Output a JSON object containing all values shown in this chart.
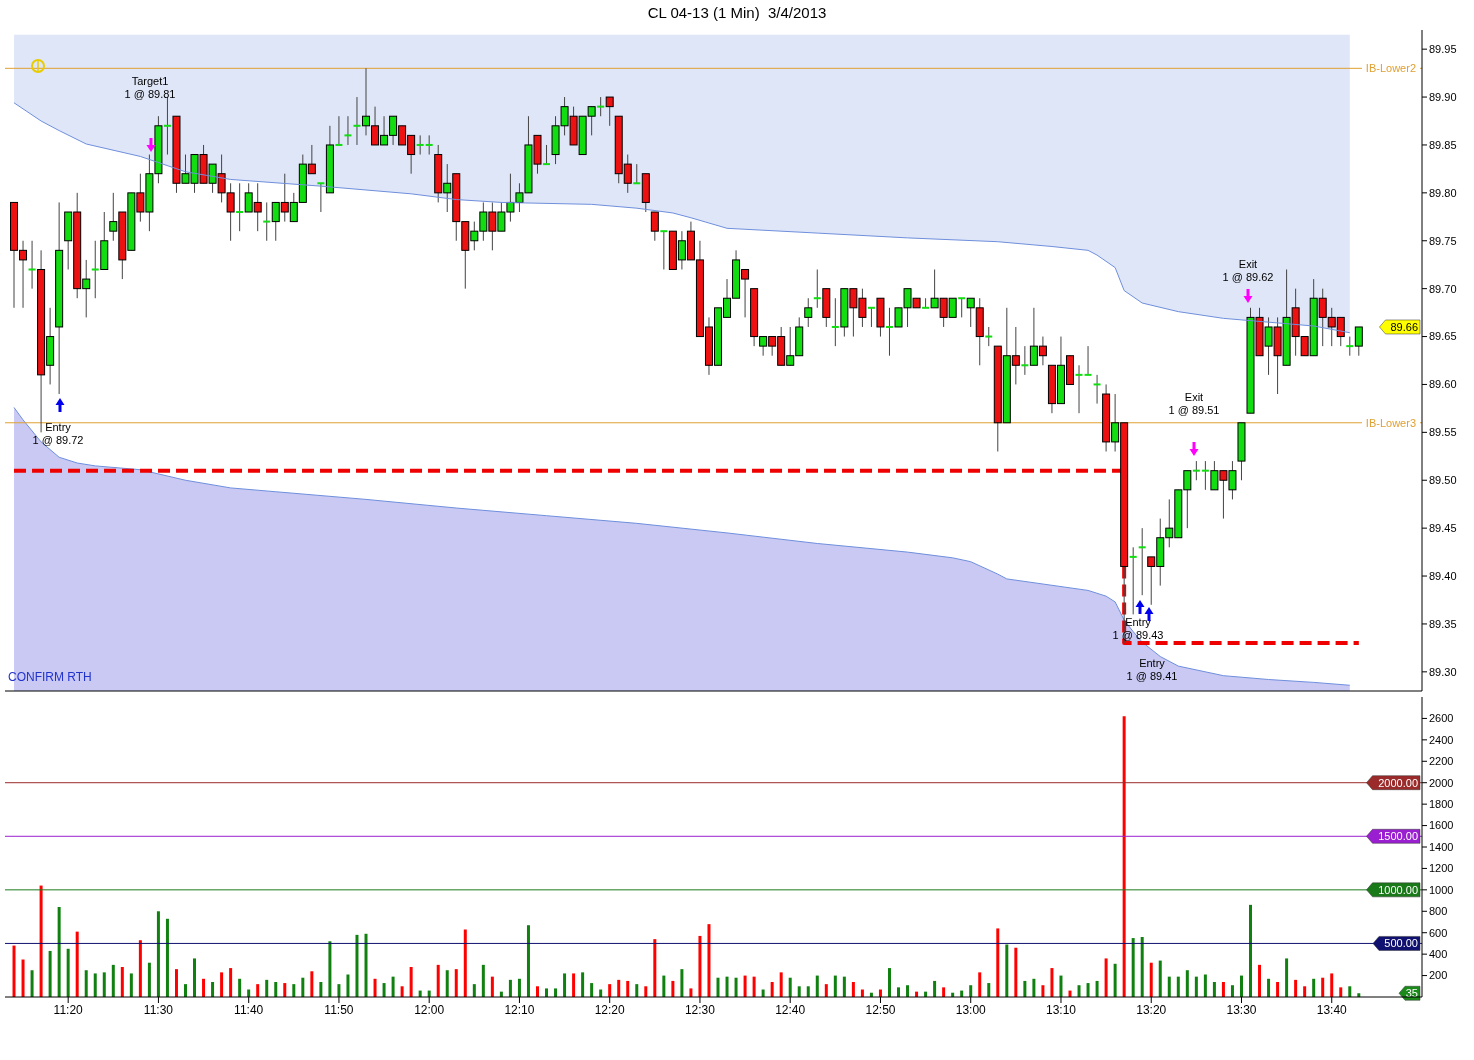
{
  "chart_data": [
    {
      "type": "candlestick",
      "title": "CL 04-13 (1 Min)  3/4/2013",
      "x": [
        "2013-03-04T11:14",
        "2013-03-04T11:15",
        "2013-03-04T11:16",
        "2013-03-04T11:17",
        "2013-03-04T11:18",
        "2013-03-04T11:19",
        "2013-03-04T11:20",
        "2013-03-04T11:21",
        "2013-03-04T11:22",
        "2013-03-04T11:23",
        "2013-03-04T11:24",
        "2013-03-04T11:25",
        "2013-03-04T11:26",
        "2013-03-04T11:27",
        "2013-03-04T11:28",
        "2013-03-04T11:29",
        "2013-03-04T11:30",
        "2013-03-04T11:31",
        "2013-03-04T11:32",
        "2013-03-04T11:33",
        "2013-03-04T11:34",
        "2013-03-04T11:35",
        "2013-03-04T11:36",
        "2013-03-04T11:37",
        "2013-03-04T11:38",
        "2013-03-04T11:39",
        "2013-03-04T11:40",
        "2013-03-04T11:41",
        "2013-03-04T11:42",
        "2013-03-04T11:43",
        "2013-03-04T11:44",
        "2013-03-04T11:45",
        "2013-03-04T11:46",
        "2013-03-04T11:47",
        "2013-03-04T11:48",
        "2013-03-04T11:49",
        "2013-03-04T11:50",
        "2013-03-04T11:51",
        "2013-03-04T11:52",
        "2013-03-04T11:53",
        "2013-03-04T11:54",
        "2013-03-04T11:55",
        "2013-03-04T11:56",
        "2013-03-04T11:57",
        "2013-03-04T11:58",
        "2013-03-04T11:59",
        "2013-03-04T12:00",
        "2013-03-04T12:01",
        "2013-03-04T12:02",
        "2013-03-04T12:03",
        "2013-03-04T12:04",
        "2013-03-04T12:05",
        "2013-03-04T12:06",
        "2013-03-04T12:07",
        "2013-03-04T12:08",
        "2013-03-04T12:09",
        "2013-03-04T12:10",
        "2013-03-04T12:11",
        "2013-03-04T12:12",
        "2013-03-04T12:13",
        "2013-03-04T12:14",
        "2013-03-04T12:15",
        "2013-03-04T12:16",
        "2013-03-04T12:17",
        "2013-03-04T12:18",
        "2013-03-04T12:19",
        "2013-03-04T12:20",
        "2013-03-04T12:21",
        "2013-03-04T12:22",
        "2013-03-04T12:23",
        "2013-03-04T12:24",
        "2013-03-04T12:25",
        "2013-03-04T12:26",
        "2013-03-04T12:27",
        "2013-03-04T12:28",
        "2013-03-04T12:29",
        "2013-03-04T12:30",
        "2013-03-04T12:31",
        "2013-03-04T12:32",
        "2013-03-04T12:33",
        "2013-03-04T12:34",
        "2013-03-04T12:35",
        "2013-03-04T12:36",
        "2013-03-04T12:37",
        "2013-03-04T12:38",
        "2013-03-04T12:39",
        "2013-03-04T12:40",
        "2013-03-04T12:41",
        "2013-03-04T12:42",
        "2013-03-04T12:43",
        "2013-03-04T12:44",
        "2013-03-04T12:45",
        "2013-03-04T12:46",
        "2013-03-04T12:47",
        "2013-03-04T12:48",
        "2013-03-04T12:49",
        "2013-03-04T12:50",
        "2013-03-04T12:51",
        "2013-03-04T12:52",
        "2013-03-04T12:53",
        "2013-03-04T12:54",
        "2013-03-04T12:55",
        "2013-03-04T12:56",
        "2013-03-04T12:57",
        "2013-03-04T12:58",
        "2013-03-04T12:59",
        "2013-03-04T13:00",
        "2013-03-04T13:01",
        "2013-03-04T13:02",
        "2013-03-04T13:03",
        "2013-03-04T13:04",
        "2013-03-04T13:05",
        "2013-03-04T13:06",
        "2013-03-04T13:07",
        "2013-03-04T13:08",
        "2013-03-04T13:09",
        "2013-03-04T13:10",
        "2013-03-04T13:11",
        "2013-03-04T13:12",
        "2013-03-04T13:13",
        "2013-03-04T13:14",
        "2013-03-04T13:15",
        "2013-03-04T13:16",
        "2013-03-04T13:17",
        "2013-03-04T13:18",
        "2013-03-04T13:19",
        "2013-03-04T13:20",
        "2013-03-04T13:21",
        "2013-03-04T13:22",
        "2013-03-04T13:23",
        "2013-03-04T13:24",
        "2013-03-04T13:25",
        "2013-03-04T13:26",
        "2013-03-04T13:27",
        "2013-03-04T13:28",
        "2013-03-04T13:29",
        "2013-03-04T13:30",
        "2013-03-04T13:31",
        "2013-03-04T13:32",
        "2013-03-04T13:33",
        "2013-03-04T13:34",
        "2013-03-04T13:35",
        "2013-03-04T13:36",
        "2013-03-04T13:37",
        "2013-03-04T13:38",
        "2013-03-04T13:39",
        "2013-03-04T13:40",
        "2013-03-04T13:41",
        "2013-03-04T13:42",
        "2013-03-04T13:43"
      ],
      "ohlc": [
        [
          89.79,
          89.79,
          89.68,
          89.74
        ],
        [
          89.74,
          89.75,
          89.68,
          89.73
        ],
        [
          89.72,
          89.75,
          89.7,
          89.72
        ],
        [
          89.72,
          89.74,
          89.55,
          89.61
        ],
        [
          89.62,
          89.68,
          89.6,
          89.65
        ],
        [
          89.66,
          89.79,
          89.59,
          89.74
        ],
        [
          89.75,
          89.78,
          89.72,
          89.78
        ],
        [
          89.78,
          89.8,
          89.69,
          89.7
        ],
        [
          89.7,
          89.73,
          89.67,
          89.71
        ],
        [
          89.72,
          89.75,
          89.69,
          89.72
        ],
        [
          89.72,
          89.78,
          89.72,
          89.75
        ],
        [
          89.76,
          89.8,
          89.75,
          89.77
        ],
        [
          89.78,
          89.78,
          89.71,
          89.73
        ],
        [
          89.74,
          89.8,
          89.74,
          89.8
        ],
        [
          89.8,
          89.82,
          89.77,
          89.78
        ],
        [
          89.78,
          89.84,
          89.76,
          89.82
        ],
        [
          89.82,
          89.88,
          89.81,
          89.87
        ],
        [
          89.87,
          89.9,
          89.84,
          89.87
        ],
        [
          89.88,
          89.88,
          89.8,
          89.81
        ],
        [
          89.81,
          89.84,
          89.81,
          89.82
        ],
        [
          89.81,
          89.84,
          89.8,
          89.84
        ],
        [
          89.84,
          89.85,
          89.81,
          89.81
        ],
        [
          89.81,
          89.83,
          89.8,
          89.83
        ],
        [
          89.82,
          89.84,
          89.79,
          89.8
        ],
        [
          89.8,
          89.81,
          89.75,
          89.78
        ],
        [
          89.78,
          89.81,
          89.76,
          89.78
        ],
        [
          89.78,
          89.81,
          89.78,
          89.8
        ],
        [
          89.79,
          89.81,
          89.76,
          89.78
        ],
        [
          89.77,
          89.79,
          89.75,
          89.77
        ],
        [
          89.77,
          89.79,
          89.75,
          89.79
        ],
        [
          89.79,
          89.82,
          89.77,
          89.78
        ],
        [
          89.77,
          89.8,
          89.77,
          89.79
        ],
        [
          89.79,
          89.84,
          89.79,
          89.83
        ],
        [
          89.83,
          89.85,
          89.82,
          89.82
        ],
        [
          89.81,
          89.81,
          89.78,
          89.81
        ],
        [
          89.8,
          89.87,
          89.8,
          89.85
        ],
        [
          89.85,
          89.88,
          89.85,
          89.85
        ],
        [
          89.86,
          89.88,
          89.85,
          89.86
        ],
        [
          89.87,
          89.9,
          89.85,
          89.87
        ],
        [
          89.87,
          89.93,
          89.86,
          89.88
        ],
        [
          89.87,
          89.89,
          89.85,
          89.85
        ],
        [
          89.85,
          89.88,
          89.85,
          89.86
        ],
        [
          89.86,
          89.88,
          89.85,
          89.88
        ],
        [
          89.87,
          89.87,
          89.85,
          89.85
        ],
        [
          89.86,
          89.86,
          89.82,
          89.84
        ],
        [
          89.85,
          89.86,
          89.84,
          89.85
        ],
        [
          89.85,
          89.86,
          89.84,
          89.85
        ],
        [
          89.84,
          89.85,
          89.79,
          89.8
        ],
        [
          89.8,
          89.83,
          89.78,
          89.81
        ],
        [
          89.82,
          89.82,
          89.75,
          89.77
        ],
        [
          89.77,
          89.77,
          89.7,
          89.74
        ],
        [
          89.75,
          89.77,
          89.74,
          89.76
        ],
        [
          89.76,
          89.79,
          89.75,
          89.78
        ],
        [
          89.78,
          89.79,
          89.74,
          89.76
        ],
        [
          89.76,
          89.79,
          89.76,
          89.78
        ],
        [
          89.78,
          89.82,
          89.77,
          89.79
        ],
        [
          89.79,
          89.81,
          89.78,
          89.8
        ],
        [
          89.8,
          89.88,
          89.8,
          89.85
        ],
        [
          89.86,
          89.86,
          89.82,
          89.83
        ],
        [
          89.83,
          89.85,
          89.83,
          89.83
        ],
        [
          89.84,
          89.88,
          89.83,
          89.87
        ],
        [
          89.87,
          89.9,
          89.86,
          89.89
        ],
        [
          89.88,
          89.89,
          89.85,
          89.85
        ],
        [
          89.84,
          89.88,
          89.84,
          89.88
        ],
        [
          89.88,
          89.89,
          89.86,
          89.89
        ],
        [
          89.89,
          89.9,
          89.88,
          89.89
        ],
        [
          89.9,
          89.9,
          89.87,
          89.89
        ],
        [
          89.88,
          89.88,
          89.81,
          89.82
        ],
        [
          89.83,
          89.84,
          89.8,
          89.81
        ],
        [
          89.81,
          89.83,
          89.81,
          89.81
        ],
        [
          89.82,
          89.82,
          89.78,
          89.79
        ],
        [
          89.78,
          89.78,
          89.75,
          89.76
        ],
        [
          89.76,
          89.76,
          89.72,
          89.76
        ],
        [
          89.76,
          89.76,
          89.72,
          89.72
        ],
        [
          89.73,
          89.76,
          89.72,
          89.75
        ],
        [
          89.76,
          89.77,
          89.73,
          89.73
        ],
        [
          89.73,
          89.75,
          89.65,
          89.65
        ],
        [
          89.66,
          89.67,
          89.61,
          89.62
        ],
        [
          89.62,
          89.68,
          89.62,
          89.68
        ],
        [
          89.67,
          89.71,
          89.67,
          89.69
        ],
        [
          89.69,
          89.74,
          89.69,
          89.73
        ],
        [
          89.72,
          89.72,
          89.67,
          89.71
        ],
        [
          89.7,
          89.7,
          89.64,
          89.65
        ],
        [
          89.64,
          89.65,
          89.63,
          89.65
        ],
        [
          89.65,
          89.65,
          89.63,
          89.64
        ],
        [
          89.65,
          89.66,
          89.62,
          89.62
        ],
        [
          89.62,
          89.66,
          89.62,
          89.63
        ],
        [
          89.63,
          89.67,
          89.63,
          89.66
        ],
        [
          89.67,
          89.69,
          89.66,
          89.68
        ],
        [
          89.69,
          89.72,
          89.68,
          89.69
        ],
        [
          89.7,
          89.7,
          89.66,
          89.67
        ],
        [
          89.66,
          89.69,
          89.64,
          89.66
        ],
        [
          89.66,
          89.7,
          89.65,
          89.7
        ],
        [
          89.7,
          89.7,
          89.65,
          89.68
        ],
        [
          89.69,
          89.7,
          89.66,
          89.67
        ],
        [
          89.68,
          89.68,
          89.66,
          89.68
        ],
        [
          89.69,
          89.69,
          89.65,
          89.66
        ],
        [
          89.66,
          89.68,
          89.63,
          89.66
        ],
        [
          89.66,
          89.68,
          89.66,
          89.68
        ],
        [
          89.68,
          89.7,
          89.66,
          89.7
        ],
        [
          89.69,
          89.69,
          89.68,
          89.68
        ],
        [
          89.68,
          89.69,
          89.68,
          89.68
        ],
        [
          89.68,
          89.72,
          89.68,
          89.69
        ],
        [
          89.69,
          89.69,
          89.66,
          89.67
        ],
        [
          89.67,
          89.69,
          89.67,
          89.69
        ],
        [
          89.69,
          89.69,
          89.67,
          89.69
        ],
        [
          89.68,
          89.69,
          89.66,
          89.69
        ],
        [
          89.68,
          89.69,
          89.62,
          89.65
        ],
        [
          89.65,
          89.66,
          89.64,
          89.65
        ],
        [
          89.64,
          89.64,
          89.53,
          89.56
        ],
        [
          89.56,
          89.68,
          89.56,
          89.63
        ],
        [
          89.63,
          89.66,
          89.6,
          89.62
        ],
        [
          89.62,
          89.64,
          89.61,
          89.62
        ],
        [
          89.62,
          89.68,
          89.62,
          89.64
        ],
        [
          89.64,
          89.65,
          89.62,
          89.63
        ],
        [
          89.62,
          89.62,
          89.57,
          89.58
        ],
        [
          89.58,
          89.65,
          89.58,
          89.62
        ],
        [
          89.63,
          89.63,
          89.6,
          89.6
        ],
        [
          89.61,
          89.62,
          89.57,
          89.61
        ],
        [
          89.61,
          89.64,
          89.61,
          89.61
        ],
        [
          89.6,
          89.61,
          89.58,
          89.6
        ],
        [
          89.59,
          89.6,
          89.53,
          89.54
        ],
        [
          89.54,
          89.59,
          89.53,
          89.56
        ],
        [
          89.56,
          89.56,
          89.33,
          89.41
        ],
        [
          89.42,
          89.43,
          89.36,
          89.42
        ],
        [
          89.43,
          89.45,
          89.38,
          89.43
        ],
        [
          89.42,
          89.42,
          89.37,
          89.41
        ],
        [
          89.41,
          89.46,
          89.39,
          89.44
        ],
        [
          89.44,
          89.48,
          89.43,
          89.45
        ],
        [
          89.44,
          89.49,
          89.44,
          89.49
        ],
        [
          89.49,
          89.51,
          89.45,
          89.51
        ],
        [
          89.51,
          89.52,
          89.5,
          89.51
        ],
        [
          89.51,
          89.52,
          89.49,
          89.51
        ],
        [
          89.49,
          89.52,
          89.49,
          89.51
        ],
        [
          89.51,
          89.51,
          89.46,
          89.5
        ],
        [
          89.49,
          89.52,
          89.48,
          89.51
        ],
        [
          89.52,
          89.56,
          89.5,
          89.56
        ],
        [
          89.57,
          89.68,
          89.57,
          89.67
        ],
        [
          89.67,
          89.68,
          89.63,
          89.63
        ],
        [
          89.64,
          89.67,
          89.61,
          89.66
        ],
        [
          89.66,
          89.67,
          89.59,
          89.63
        ],
        [
          89.62,
          89.72,
          89.62,
          89.67
        ],
        [
          89.68,
          89.7,
          89.63,
          89.65
        ],
        [
          89.65,
          89.65,
          89.63,
          89.63
        ],
        [
          89.63,
          89.71,
          89.63,
          89.69
        ],
        [
          89.69,
          89.7,
          89.64,
          89.67
        ],
        [
          89.67,
          89.68,
          89.64,
          89.66
        ],
        [
          89.67,
          89.67,
          89.64,
          89.65
        ],
        [
          89.64,
          89.65,
          89.63,
          89.64
        ],
        [
          89.64,
          89.66,
          89.63,
          89.66
        ]
      ],
      "colors": [
        "#ee1111",
        "#ee1111",
        "#11dd11",
        "#ee1111",
        "#11dd11",
        "#11dd11",
        "#11dd11",
        "#ee1111",
        "#11dd11",
        "#11dd11",
        "#11dd11",
        "#11dd11",
        "#ee1111",
        "#11dd11",
        "#ee1111",
        "#11dd11",
        "#11dd11",
        "#11dd11",
        "#ee1111",
        "#11dd11",
        "#11dd11",
        "#ee1111",
        "#11dd11",
        "#ee1111",
        "#ee1111",
        "#11dd11",
        "#11dd11",
        "#ee1111",
        "#11dd11",
        "#11dd11",
        "#ee1111",
        "#11dd11",
        "#11dd11",
        "#ee1111",
        "#11dd11",
        "#11dd11",
        "#11dd11",
        "#11dd11",
        "#11dd11",
        "#11dd11",
        "#ee1111",
        "#11dd11",
        "#11dd11",
        "#ee1111",
        "#ee1111",
        "#11dd11",
        "#11dd11",
        "#ee1111",
        "#11dd11",
        "#ee1111",
        "#ee1111",
        "#11dd11",
        "#11dd11",
        "#ee1111",
        "#11dd11",
        "#11dd11",
        "#11dd11",
        "#11dd11",
        "#ee1111",
        "#11dd11",
        "#11dd11",
        "#11dd11",
        "#ee1111",
        "#11dd11",
        "#11dd11",
        "#11dd11",
        "#ee1111",
        "#ee1111",
        "#ee1111",
        "#11dd11",
        "#ee1111",
        "#ee1111",
        "#11dd11",
        "#ee1111",
        "#11dd11",
        "#ee1111",
        "#ee1111",
        "#ee1111",
        "#11dd11",
        "#11dd11",
        "#11dd11",
        "#ee1111",
        "#ee1111",
        "#11dd11",
        "#ee1111",
        "#ee1111",
        "#11dd11",
        "#11dd11",
        "#11dd11",
        "#11dd11",
        "#ee1111",
        "#11dd11",
        "#11dd11",
        "#ee1111",
        "#ee1111",
        "#11dd11",
        "#ee1111",
        "#11dd11",
        "#11dd11",
        "#11dd11",
        "#ee1111",
        "#11dd11",
        "#11dd11",
        "#ee1111",
        "#11dd11",
        "#11dd11",
        "#11dd11",
        "#ee1111",
        "#11dd11",
        "#ee1111",
        "#11dd11",
        "#ee1111",
        "#11dd11",
        "#11dd11",
        "#ee1111",
        "#ee1111",
        "#11dd11",
        "#ee1111",
        "#11dd11",
        "#11dd11",
        "#11dd11",
        "#ee1111",
        "#11dd11",
        "#ee1111",
        "#11dd11",
        "#11dd11",
        "#ee1111",
        "#11dd11",
        "#11dd11",
        "#11dd11",
        "#11dd11",
        "#11dd11",
        "#11dd11",
        "#11dd11",
        "#ee1111",
        "#11dd11",
        "#11dd11",
        "#11dd11",
        "#ee1111",
        "#11dd11",
        "#ee1111",
        "#11dd11",
        "#ee1111",
        "#ee1111",
        "#11dd11",
        "#ee1111",
        "#ee1111",
        "#ee1111",
        "#11dd11",
        "#11dd11"
      ],
      "series": [
        {
          "type": "line",
          "color": "#6f8fdc",
          "x": [
            "2013-03-04T11:14",
            "2013-03-04T11:17",
            "2013-03-04T11:19",
            "2013-03-04T11:22",
            "2013-03-04T11:28",
            "2013-03-04T11:33",
            "2013-03-04T11:38",
            "2013-03-04T11:48",
            "2013-03-04T11:58",
            "2013-03-04T12:03",
            "2013-03-04T12:08",
            "2013-03-04T12:18",
            "2013-03-04T12:23",
            "2013-03-04T12:27",
            "2013-03-04T12:29",
            "2013-03-04T12:33",
            "2013-03-04T12:43",
            "2013-03-04T12:53",
            "2013-03-04T13:03",
            "2013-03-04T13:09",
            "2013-03-04T13:13",
            "2013-03-04T13:14",
            "2013-03-04T13:16",
            "2013-03-04T13:17",
            "2013-03-04T13:19",
            "2013-03-04T13:23",
            "2013-03-04T13:28",
            "2013-03-04T13:33",
            "2013-03-04T13:38",
            "2013-03-04T13:42"
          ],
          "values": [
            89.894,
            89.875,
            89.865,
            89.851,
            89.838,
            89.822,
            89.814,
            89.807,
            89.799,
            89.793,
            89.79,
            89.788,
            89.784,
            89.779,
            89.774,
            89.763,
            89.758,
            89.753,
            89.749,
            89.744,
            89.74,
            89.735,
            89.722,
            89.698,
            89.685,
            89.676,
            89.669,
            89.665,
            89.661,
            89.654
          ],
          "lower": [
            89.894,
            89.875,
            89.865,
            89.851,
            89.838,
            89.822,
            89.814,
            89.807,
            89.799,
            89.793,
            89.79,
            89.788,
            89.784,
            89.779,
            89.774,
            89.763,
            89.758,
            89.753,
            89.749,
            89.744,
            89.74,
            89.735,
            89.722,
            89.698,
            89.685,
            89.676,
            89.669,
            89.665,
            89.661,
            89.654
          ],
          "upper": [
            89.965,
            89.965,
            89.965,
            89.965,
            89.965,
            89.965,
            89.965,
            89.965,
            89.965,
            89.965,
            89.965,
            89.965,
            89.965,
            89.965,
            89.965,
            89.965,
            89.965,
            89.965,
            89.965,
            89.965,
            89.965,
            89.965,
            89.965,
            89.965,
            89.965,
            89.965,
            89.965,
            89.965,
            89.965,
            89.965
          ]
        },
        {
          "type": "area",
          "color": "#c9c9f4",
          "x": [
            "2013-03-04T11:14",
            "2013-03-04T11:15",
            "2013-03-04T11:17",
            "2013-03-04T11:19",
            "2013-03-04T11:21",
            "2013-03-04T11:23",
            "2013-03-04T11:28",
            "2013-03-04T11:33",
            "2013-03-04T11:38",
            "2013-03-04T11:43",
            "2013-03-04T11:53",
            "2013-03-04T12:03",
            "2013-03-04T12:13",
            "2013-03-04T12:23",
            "2013-03-04T12:33",
            "2013-03-04T12:43",
            "2013-03-04T12:53",
            "2013-03-04T12:58",
            "2013-03-04T13:00",
            "2013-03-04T13:03",
            "2013-03-04T13:04",
            "2013-03-04T13:13",
            "2013-03-04T13:15",
            "2013-03-04T13:16",
            "2013-03-04T13:17",
            "2013-03-04T13:18",
            "2013-03-04T13:19",
            "2013-03-04T13:21",
            "2013-03-04T13:23",
            "2013-03-04T13:28",
            "2013-03-04T13:33",
            "2013-03-04T13:38",
            "2013-03-04T13:42"
          ],
          "values": [
            89.576,
            89.563,
            89.54,
            89.524,
            89.518,
            89.515,
            89.511,
            89.5,
            89.492,
            89.488,
            89.48,
            89.471,
            89.463,
            89.455,
            89.445,
            89.434,
            89.425,
            89.419,
            89.415,
            89.402,
            89.397,
            89.385,
            89.379,
            89.373,
            89.354,
            89.342,
            89.331,
            89.316,
            89.306,
            89.296,
            89.292,
            89.289,
            89.286
          ]
        },
        {
          "type": "step",
          "color": "#ee0000",
          "line_style": "dashed",
          "x": [
            "2013-03-04T11:14",
            "2013-03-04T13:17",
            "2013-03-04T13:43"
          ],
          "values": [
            89.51,
            89.33,
            89.33
          ]
        }
      ],
      "xlim": [
        "2013-03-04T11:13",
        "2013-03-04T13:50"
      ],
      "ylim": [
        89.28,
        89.97
      ],
      "yticks": [
        {
          "value": 89.3,
          "label": "89.30"
        },
        {
          "value": 89.35,
          "label": "89.35"
        },
        {
          "value": 89.4,
          "label": "89.40"
        },
        {
          "value": 89.45,
          "label": "89.45"
        },
        {
          "value": 89.5,
          "label": "89.50"
        },
        {
          "value": 89.55,
          "label": "89.55"
        },
        {
          "value": 89.6,
          "label": "89.60"
        },
        {
          "value": 89.65,
          "label": "89.65"
        },
        {
          "value": 89.7,
          "label": "89.70"
        },
        {
          "value": 89.75,
          "label": "89.75"
        },
        {
          "value": 89.8,
          "label": "89.80"
        },
        {
          "value": 89.85,
          "label": "89.85"
        },
        {
          "value": 89.9,
          "label": "89.90"
        },
        {
          "value": 89.95,
          "label": "89.95"
        }
      ],
      "ref_lines": [
        {
          "axis": "y",
          "value": 89.93,
          "label": "IB-Lower2",
          "color": "#e0a030"
        },
        {
          "axis": "y",
          "value": 89.56,
          "label": "IB-Lower3",
          "color": "#e0a030"
        }
      ],
      "annotations": [
        "Target1\n1 @ 89.81",
        "Entry\n1 @ 89.72",
        "Entry\n1 @ 89.43",
        "Entry\n1 @ 89.41",
        "Exit\n1 @ 89.51",
        "Exit\n1 @ 89.62",
        "89.66",
        "CONFIRM RTH"
      ],
      "tick_labels": "y"
    },
    {
      "type": "bar",
      "x": [
        "2013-03-04T11:14",
        "2013-03-04T11:15",
        "2013-03-04T11:16",
        "2013-03-04T11:17",
        "2013-03-04T11:18",
        "2013-03-04T11:19",
        "2013-03-04T11:20",
        "2013-03-04T11:21",
        "2013-03-04T11:22",
        "2013-03-04T11:23",
        "2013-03-04T11:24",
        "2013-03-04T11:25",
        "2013-03-04T11:26",
        "2013-03-04T11:27",
        "2013-03-04T11:28",
        "2013-03-04T11:29",
        "2013-03-04T11:30",
        "2013-03-04T11:31",
        "2013-03-04T11:32",
        "2013-03-04T11:33",
        "2013-03-04T11:34",
        "2013-03-04T11:35",
        "2013-03-04T11:36",
        "2013-03-04T11:37",
        "2013-03-04T11:38",
        "2013-03-04T11:39",
        "2013-03-04T11:40",
        "2013-03-04T11:41",
        "2013-03-04T11:42",
        "2013-03-04T11:43",
        "2013-03-04T11:44",
        "2013-03-04T11:45",
        "2013-03-04T11:46",
        "2013-03-04T11:47",
        "2013-03-04T11:48",
        "2013-03-04T11:49",
        "2013-03-04T11:50",
        "2013-03-04T11:51",
        "2013-03-04T11:52",
        "2013-03-04T11:53",
        "2013-03-04T11:54",
        "2013-03-04T11:55",
        "2013-03-04T11:56",
        "2013-03-04T11:57",
        "2013-03-04T11:58",
        "2013-03-04T11:59",
        "2013-03-04T12:00",
        "2013-03-04T12:01",
        "2013-03-04T12:02",
        "2013-03-04T12:03",
        "2013-03-04T12:04",
        "2013-03-04T12:05",
        "2013-03-04T12:06",
        "2013-03-04T12:07",
        "2013-03-04T12:08",
        "2013-03-04T12:09",
        "2013-03-04T12:10",
        "2013-03-04T12:11",
        "2013-03-04T12:12",
        "2013-03-04T12:13",
        "2013-03-04T12:14",
        "2013-03-04T12:15",
        "2013-03-04T12:16",
        "2013-03-04T12:17",
        "2013-03-04T12:18",
        "2013-03-04T12:19",
        "2013-03-04T12:20",
        "2013-03-04T12:21",
        "2013-03-04T12:22",
        "2013-03-04T12:23",
        "2013-03-04T12:24",
        "2013-03-04T12:25",
        "2013-03-04T12:26",
        "2013-03-04T12:27",
        "2013-03-04T12:28",
        "2013-03-04T12:29",
        "2013-03-04T12:30",
        "2013-03-04T12:31",
        "2013-03-04T12:32",
        "2013-03-04T12:33",
        "2013-03-04T12:34",
        "2013-03-04T12:35",
        "2013-03-04T12:36",
        "2013-03-04T12:37",
        "2013-03-04T12:38",
        "2013-03-04T12:39",
        "2013-03-04T12:40",
        "2013-03-04T12:41",
        "2013-03-04T12:42",
        "2013-03-04T12:43",
        "2013-03-04T12:44",
        "2013-03-04T12:45",
        "2013-03-04T12:46",
        "2013-03-04T12:47",
        "2013-03-04T12:48",
        "2013-03-04T12:49",
        "2013-03-04T12:50",
        "2013-03-04T12:51",
        "2013-03-04T12:52",
        "2013-03-04T12:53",
        "2013-03-04T12:54",
        "2013-03-04T12:55",
        "2013-03-04T12:56",
        "2013-03-04T12:57",
        "2013-03-04T12:58",
        "2013-03-04T12:59",
        "2013-03-04T13:00",
        "2013-03-04T13:01",
        "2013-03-04T13:02",
        "2013-03-04T13:03",
        "2013-03-04T13:04",
        "2013-03-04T13:05",
        "2013-03-04T13:06",
        "2013-03-04T13:07",
        "2013-03-04T13:08",
        "2013-03-04T13:09",
        "2013-03-04T13:10",
        "2013-03-04T13:11",
        "2013-03-04T13:12",
        "2013-03-04T13:13",
        "2013-03-04T13:14",
        "2013-03-04T13:15",
        "2013-03-04T13:16",
        "2013-03-04T13:17",
        "2013-03-04T13:18",
        "2013-03-04T13:19",
        "2013-03-04T13:20",
        "2013-03-04T13:21",
        "2013-03-04T13:22",
        "2013-03-04T13:23",
        "2013-03-04T13:24",
        "2013-03-04T13:25",
        "2013-03-04T13:26",
        "2013-03-04T13:27",
        "2013-03-04T13:28",
        "2013-03-04T13:29",
        "2013-03-04T13:30",
        "2013-03-04T13:31",
        "2013-03-04T13:32",
        "2013-03-04T13:33",
        "2013-03-04T13:34",
        "2013-03-04T13:35",
        "2013-03-04T13:36",
        "2013-03-04T13:37",
        "2013-03-04T13:38",
        "2013-03-04T13:39",
        "2013-03-04T13:40",
        "2013-03-04T13:41",
        "2013-03-04T13:42",
        "2013-03-04T13:43"
      ],
      "values": [
        480,
        350,
        250,
        1040,
        430,
        840,
        450,
        610,
        250,
        220,
        230,
        300,
        280,
        220,
        530,
        320,
        800,
        730,
        260,
        120,
        360,
        170,
        140,
        230,
        270,
        170,
        70,
        120,
        160,
        140,
        130,
        120,
        180,
        240,
        140,
        520,
        120,
        210,
        580,
        590,
        170,
        130,
        190,
        100,
        280,
        60,
        60,
        300,
        250,
        260,
        630,
        120,
        300,
        190,
        50,
        160,
        170,
        670,
        100,
        80,
        80,
        220,
        220,
        230,
        130,
        70,
        120,
        160,
        150,
        120,
        100,
        540,
        200,
        150,
        260,
        80,
        570,
        680,
        180,
        190,
        180,
        200,
        190,
        70,
        140,
        230,
        180,
        100,
        100,
        200,
        120,
        200,
        190,
        140,
        70,
        40,
        70,
        270,
        90,
        110,
        50,
        50,
        150,
        90,
        40,
        60,
        110,
        230,
        130,
        640,
        490,
        460,
        150,
        170,
        110,
        270,
        200,
        60,
        110,
        130,
        150,
        360,
        310,
        2620,
        550,
        560,
        320,
        340,
        190,
        190,
        250,
        190,
        210,
        140,
        140,
        110,
        200,
        860,
        300,
        170,
        140,
        360,
        160,
        100,
        170,
        180,
        220,
        90,
        100,
        35
      ],
      "colors": [
        "#ff0000",
        "#ff0000",
        "#108010",
        "#ff0000",
        "#108010",
        "#108010",
        "#108010",
        "#ff0000",
        "#108010",
        "#108010",
        "#108010",
        "#108010",
        "#ff0000",
        "#108010",
        "#ff0000",
        "#108010",
        "#108010",
        "#108010",
        "#ff0000",
        "#108010",
        "#108010",
        "#ff0000",
        "#108010",
        "#ff0000",
        "#ff0000",
        "#108010",
        "#108010",
        "#ff0000",
        "#108010",
        "#108010",
        "#ff0000",
        "#108010",
        "#108010",
        "#ff0000",
        "#108010",
        "#108010",
        "#108010",
        "#108010",
        "#108010",
        "#108010",
        "#ff0000",
        "#108010",
        "#108010",
        "#ff0000",
        "#ff0000",
        "#108010",
        "#108010",
        "#ff0000",
        "#108010",
        "#ff0000",
        "#ff0000",
        "#108010",
        "#108010",
        "#ff0000",
        "#108010",
        "#108010",
        "#108010",
        "#108010",
        "#ff0000",
        "#108010",
        "#108010",
        "#108010",
        "#ff0000",
        "#108010",
        "#108010",
        "#108010",
        "#ff0000",
        "#ff0000",
        "#ff0000",
        "#108010",
        "#ff0000",
        "#ff0000",
        "#108010",
        "#ff0000",
        "#108010",
        "#ff0000",
        "#ff0000",
        "#ff0000",
        "#108010",
        "#108010",
        "#108010",
        "#ff0000",
        "#ff0000",
        "#108010",
        "#ff0000",
        "#ff0000",
        "#108010",
        "#108010",
        "#108010",
        "#108010",
        "#ff0000",
        "#108010",
        "#108010",
        "#ff0000",
        "#ff0000",
        "#108010",
        "#ff0000",
        "#108010",
        "#108010",
        "#108010",
        "#ff0000",
        "#108010",
        "#108010",
        "#ff0000",
        "#108010",
        "#108010",
        "#108010",
        "#ff0000",
        "#108010",
        "#ff0000",
        "#108010",
        "#ff0000",
        "#108010",
        "#108010",
        "#ff0000",
        "#ff0000",
        "#108010",
        "#ff0000",
        "#108010",
        "#108010",
        "#108010",
        "#ff0000",
        "#108010",
        "#ff0000",
        "#108010",
        "#108010",
        "#ff0000",
        "#108010",
        "#108010",
        "#108010",
        "#108010",
        "#108010",
        "#108010",
        "#108010",
        "#ff0000",
        "#108010",
        "#108010",
        "#108010",
        "#ff0000",
        "#108010",
        "#ff0000",
        "#108010",
        "#ff0000",
        "#ff0000",
        "#108010",
        "#ff0000",
        "#ff0000",
        "#ff0000",
        "#108010",
        "#108010"
      ],
      "xlim": [
        "2013-03-04T11:13",
        "2013-03-04T13:50"
      ],
      "xticks": [
        {
          "value": "2013-03-04T11:20",
          "label": "11:20"
        },
        {
          "value": "2013-03-04T11:30",
          "label": "11:30"
        },
        {
          "value": "2013-03-04T11:40",
          "label": "11:40"
        },
        {
          "value": "2013-03-04T11:50",
          "label": "11:50"
        },
        {
          "value": "2013-03-04T12:00",
          "label": "12:00"
        },
        {
          "value": "2013-03-04T12:10",
          "label": "12:10"
        },
        {
          "value": "2013-03-04T12:20",
          "label": "12:20"
        },
        {
          "value": "2013-03-04T12:30",
          "label": "12:30"
        },
        {
          "value": "2013-03-04T12:40",
          "label": "12:40"
        },
        {
          "value": "2013-03-04T12:50",
          "label": "12:50"
        },
        {
          "value": "2013-03-04T13:00",
          "label": "13:00"
        },
        {
          "value": "2013-03-04T13:10",
          "label": "13:10"
        },
        {
          "value": "2013-03-04T13:20",
          "label": "13:20"
        },
        {
          "value": "2013-03-04T13:30",
          "label": "13:30"
        },
        {
          "value": "2013-03-04T13:40",
          "label": "13:40"
        }
      ],
      "ylim": [
        0,
        2800
      ],
      "yticks": [
        200,
        400,
        600,
        800,
        1000,
        1200,
        1400,
        1600,
        1800,
        2000,
        2200,
        2400,
        2600
      ],
      "ref_lines": [
        {
          "axis": "y",
          "value": 2000,
          "label": "2000.00",
          "color": "#9b2a2a"
        },
        {
          "axis": "y",
          "value": 1500,
          "label": "1500.00",
          "color": "#9a1fd0"
        },
        {
          "axis": "y",
          "value": 1000,
          "label": "1000.00",
          "color": "#1a7a1a"
        },
        {
          "axis": "y",
          "value": 500,
          "label": "500.00",
          "color": "#101070"
        }
      ],
      "annotations": [
        "35"
      ]
    }
  ]
}
